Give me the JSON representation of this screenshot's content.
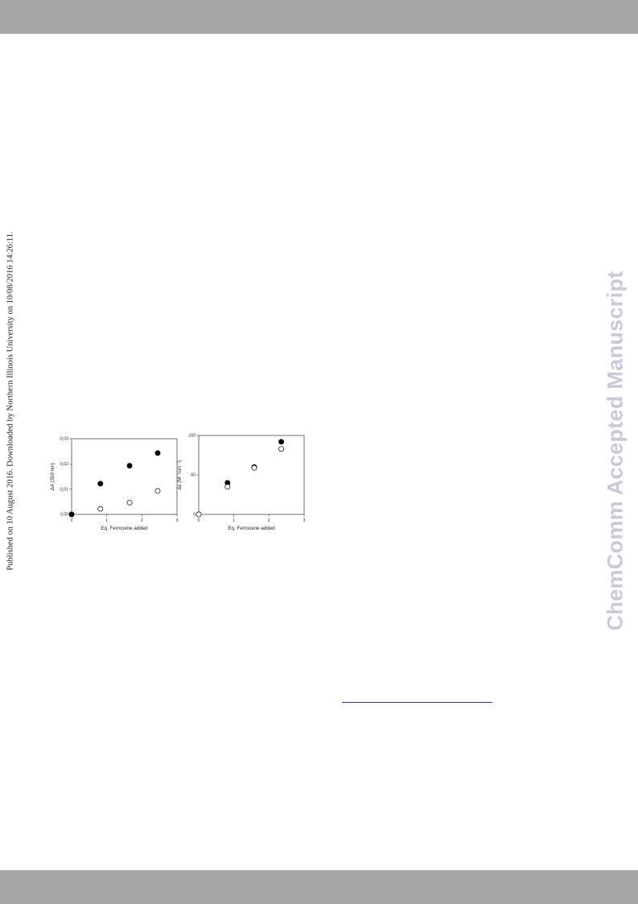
{
  "page": {
    "side_note": "Published on 10 August 2016. Downloaded by Northern Illinois University on 10/08/2016 14:26:11.",
    "watermark": "ChemComm Accepted Manuscript"
  },
  "chart_data": [
    {
      "type": "scatter",
      "title": "",
      "xlabel": "Eq. Ferrocene added",
      "ylabel": "ΔA (350 nm)",
      "xlim": [
        0,
        3
      ],
      "ylim": [
        0,
        -0.03
      ],
      "x_ticks": [
        "0",
        "1",
        "2",
        "3"
      ],
      "y_ticks": [
        "0,00",
        "-0,01",
        "-0,02",
        "-0,03"
      ],
      "y_tick_values": [
        0,
        -0.01,
        -0.02,
        -0.03
      ],
      "grid": false,
      "series": [
        {
          "marker": "filled",
          "x": [
            0,
            0.82,
            1.65,
            2.45
          ],
          "y": [
            0,
            -0.0122,
            -0.0193,
            -0.0243
          ]
        },
        {
          "marker": "open",
          "x": [
            0.82,
            1.65,
            2.45
          ],
          "y": [
            -0.0022,
            -0.0047,
            -0.0093
          ]
        }
      ]
    },
    {
      "type": "scatter",
      "title": "",
      "xlabel": "Eq. Ferrocene added",
      "ylabel": "Δε (M⁻¹cm⁻¹)",
      "xlim": [
        0,
        3
      ],
      "ylim": [
        0,
        -100
      ],
      "x_ticks": [
        "0",
        "1",
        "2",
        "3"
      ],
      "y_ticks": [
        "0",
        "-50",
        "-100"
      ],
      "y_tick_values": [
        0,
        -50,
        -100
      ],
      "grid": false,
      "series": [
        {
          "marker": "filled",
          "x": [
            0.82,
            1.58,
            2.35
          ],
          "y": [
            -40,
            -60,
            -92
          ]
        },
        {
          "marker": "open",
          "x": [
            0,
            0.82,
            1.58,
            2.35
          ],
          "y": [
            0,
            -35,
            -59,
            -83
          ]
        }
      ]
    }
  ]
}
